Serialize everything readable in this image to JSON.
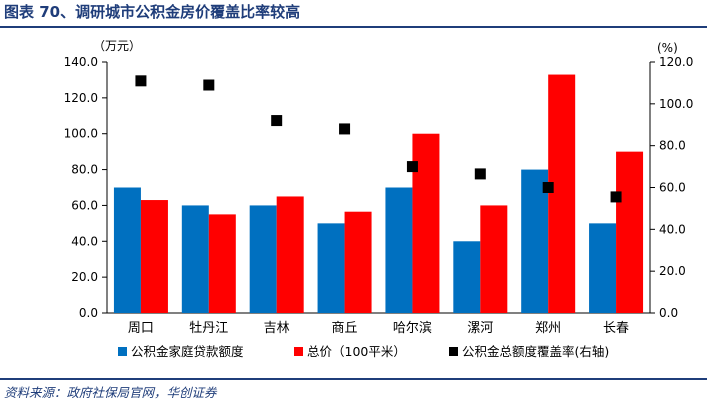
{
  "figure": {
    "title": "图表 70、调研城市公积金房价覆盖比率较高",
    "source": "资料来源：政府社保局官网，华创证券"
  },
  "chart_data": {
    "type": "bar",
    "categories": [
      "周口",
      "牡丹江",
      "吉林",
      "商丘",
      "哈尔滨",
      "漯河",
      "郑州",
      "长春"
    ],
    "y_left_unit": "（万元）",
    "y_right_unit": "(%)",
    "y_left_lim": [
      0,
      140
    ],
    "y_right_lim": [
      0,
      120
    ],
    "y_left_ticks": [
      "0.0",
      "20.0",
      "40.0",
      "60.0",
      "80.0",
      "100.0",
      "120.0",
      "140.0"
    ],
    "y_right_ticks": [
      "0.0",
      "20.0",
      "40.0",
      "60.0",
      "80.0",
      "100.0",
      "120.0"
    ],
    "series": [
      {
        "name": "公积金家庭贷款额度",
        "type": "bar",
        "axis": "left",
        "color": "#0070c0",
        "values": [
          70,
          60,
          60,
          50,
          70,
          40,
          80,
          50
        ]
      },
      {
        "name": "总价（100平米）",
        "type": "bar",
        "axis": "left",
        "color": "#ff0000",
        "values": [
          63,
          55,
          65,
          56.5,
          100,
          60,
          133,
          90
        ]
      },
      {
        "name": "公积金总额度覆盖率(右轴)",
        "type": "scatter",
        "axis": "right",
        "color": "#000000",
        "values": [
          111,
          109,
          92,
          88,
          70,
          66.5,
          60,
          55.5
        ]
      }
    ],
    "legend_position": "bottom",
    "grid": false
  }
}
